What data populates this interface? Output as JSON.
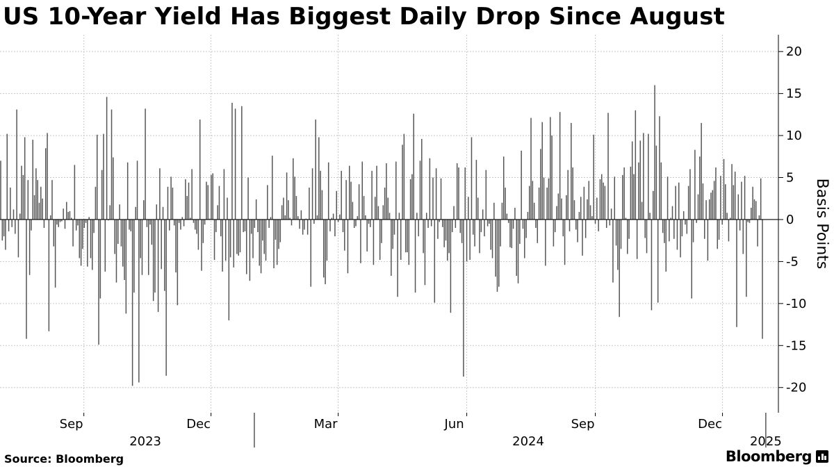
{
  "title": "US 10-Year Yield Has Biggest Daily Drop Since August",
  "source": "Source: Bloomberg",
  "brand": "Bloomberg",
  "brand_icon": "bloomberg-bars-icon",
  "colors": {
    "bar": "#555555",
    "grid": "#c8c8c8",
    "axis": "#000000",
    "background": "#ffffff"
  },
  "chart_data": {
    "type": "bar",
    "title": "US 10-Year Yield Has Biggest Daily Drop Since August",
    "ylabel": "Basis Points",
    "xlabel": "",
    "ylim": [
      -23,
      22
    ],
    "yticks": [
      20,
      15,
      10,
      5,
      0,
      -5,
      -10,
      -15,
      -20
    ],
    "grid": true,
    "y_axis_side": "right",
    "x_start": "2023-07-03",
    "x_end": "2025-01-10",
    "xticks": [
      {
        "date": "2023-09-01",
        "label": "Sep"
      },
      {
        "date": "2023-12-01",
        "label": "Dec"
      },
      {
        "date": "2024-03-01",
        "label": "Mar"
      },
      {
        "date": "2024-06-01",
        "label": "Jun"
      },
      {
        "date": "2024-09-01",
        "label": "Sep"
      },
      {
        "date": "2024-12-01",
        "label": "Dec"
      }
    ],
    "year_labels": [
      {
        "date": "2023-10-15",
        "label": "2023"
      },
      {
        "date": "2024-07-15",
        "label": "2024"
      },
      {
        "date": "2025-01-01",
        "label": "2025"
      }
    ],
    "year_boundaries": [
      "2024-01-01",
      "2025-01-01"
    ],
    "series": [
      {
        "values": [
          7.0,
          -2.5,
          -2.0,
          -3.6,
          10.2,
          -1.4,
          3.8,
          -0.9,
          1.2,
          -1.7,
          13.1,
          -4.5,
          0.7,
          6.4,
          5.3,
          9.8,
          -14.2,
          4.7,
          -6.6,
          -1.3,
          9.5,
          2.9,
          6.1,
          4.7,
          2.0,
          3.9,
          2.5,
          -1.0,
          8.5,
          10.3,
          -13.3,
          0.5,
          4.7,
          -3.2,
          -8.1,
          -0.6,
          -0.9,
          -0.3,
          -0.2,
          1.3,
          -1.1,
          2.1,
          0.9,
          1.0,
          0.2,
          -3.2,
          6.5,
          -1.3,
          -0.7,
          -4.6,
          -5.5,
          -3.5,
          -1.0,
          -0.4,
          -5.6,
          0.3,
          -4.6,
          -6.0,
          -1.6,
          3.9,
          10.1,
          -14.9,
          -9.4,
          5.9,
          10.2,
          -6.2,
          14.6,
          -0.1,
          1.7,
          13.1,
          7.4,
          -4.1,
          -7.5,
          -2.9,
          1.8,
          -3.2,
          -5.6,
          -7.2,
          -11.2,
          6.8,
          -1.2,
          -1.4,
          -19.8,
          -8.7,
          1.5,
          7.0,
          -19.4,
          -4.6,
          -6.6,
          2.3,
          13.2,
          -0.9,
          -6.6,
          -0.6,
          -3.0,
          -9.7,
          -8.7,
          1.8,
          -11.0,
          6.1,
          -5.9,
          1.5,
          -8.5,
          -18.6,
          3.9,
          -1.3,
          5.1,
          3.8,
          -0.7,
          -6.3,
          -10.2,
          -0.4,
          -1.2,
          0.3,
          -0.8,
          4.8,
          2.8,
          4.4,
          0.2,
          6.0,
          -0.4,
          -1.2,
          -1.7,
          -3.6,
          11.9,
          -6.1,
          -2.8,
          -0.6,
          4.5,
          4.1,
          0.1,
          5.3,
          5.5,
          -4.8,
          -1.5,
          1.7,
          4.0,
          -2.0,
          -6.2,
          6.0,
          -4.9,
          2.6,
          -12.0,
          -4.5,
          13.9,
          -5.7,
          13.2,
          -4.1,
          -4.3,
          -3.9,
          13.5,
          -1.5,
          -1.4,
          -6.5,
          5.0,
          -7.3,
          -1.7,
          -4.6,
          -1.0,
          2.4,
          -1.5,
          -5.5,
          -6.4,
          -2.5,
          -4.1,
          -4.9,
          4.1,
          -1.0,
          0.3,
          7.6,
          -5.8,
          -2.4,
          -5.4,
          -3.5,
          -2.7,
          1.7,
          2.6,
          0.5,
          5.6,
          2.3,
          0.2,
          -0.7,
          7.3,
          5.1,
          2.8,
          0.4,
          -1.1,
          1.1,
          -1.8,
          -1.2,
          0.1,
          -1.8,
          3.8,
          -8.0,
          6.1,
          -0.5,
          11.9,
          0.5,
          9.8,
          5.8,
          3.5,
          -6.9,
          -7.7,
          -4.9,
          6.8,
          -1.4,
          0.2,
          0.7,
          -2.0,
          3.4,
          -0.3,
          0.6,
          5.8,
          -1.5,
          -3.7,
          4.7,
          -6.4,
          6.4,
          4.5,
          2.1,
          -1.0,
          -0.8,
          0.4,
          4.2,
          -5.2,
          6.9,
          2.8,
          0.5,
          -3.8,
          -0.5,
          -0.9,
          5.8,
          -5.4,
          2.7,
          6.4,
          1.6,
          -4.8,
          -2.8,
          1.7,
          3.8,
          6.7,
          2.6,
          0.8,
          -6.7,
          -3.5,
          -1.8,
          6.9,
          -9.2,
          0.8,
          -4.8,
          8.9,
          10.2,
          -3.9,
          -3.9,
          -5.4,
          4.8,
          5.4,
          12.6,
          -8.7,
          0.8,
          -2.0,
          7.0,
          9.6,
          -4.0,
          -7.8,
          0.8,
          -1.0,
          7.3,
          -0.8,
          5.0,
          -9.9,
          6.1,
          -2.3,
          -0.3,
          4.9,
          -0.9,
          -3.3,
          -2.5,
          -4.9,
          -4.0,
          -11.1,
          -1.5,
          1.6,
          -1.0,
          6.7,
          6.2,
          -1.6,
          -2.8,
          -18.7,
          6.2,
          -5.0,
          2.7,
          -4.8,
          9.8,
          -1.8,
          -3.2,
          7.1,
          2.6,
          -4.0,
          -1.5,
          1.2,
          -2.0,
          5.9,
          -0.8,
          -0.5,
          -3.6,
          -4.6,
          2.0,
          -6.8,
          -8.6,
          -8.0,
          -3.2,
          2.0,
          7.5,
          3.8,
          0.7,
          -0.4,
          -3.3,
          -3.4,
          -1.1,
          1.4,
          -6.7,
          -7.6,
          -2.9,
          8.2,
          -1.1,
          -4.6,
          -2.2,
          0.9,
          4.0,
          12.1,
          4.6,
          2.0,
          -1.0,
          -2.8,
          3.8,
          8.4,
          11.6,
          5.0,
          -5.5,
          3.8,
          4.9,
          12.2,
          10.0,
          -3.2,
          -1.5,
          1.6,
          3.1,
          12.8,
          2.5,
          -2.0,
          -5.4,
          2.9,
          5.9,
          -1.4,
          11.5,
          6.2,
          2.3,
          -1.2,
          -2.7,
          0.9,
          2.7,
          -4.3,
          3.9,
          -2.2,
          2.4,
          4.6,
          1.7,
          0.4,
          10.1,
          -0.5,
          2.6,
          -1.4,
          4.8,
          5.4,
          4.4,
          4.0,
          -1.0,
          12.7,
          -0.7,
          1.3,
          -7.5,
          5.1,
          -3.1,
          -6.0,
          -11.6,
          -3.5,
          5.3,
          6.2,
          0.2,
          -4.1,
          -2.3,
          6.3,
          9.3,
          5.4,
          13.0,
          -4.7,
          6.8,
          9.4,
          2.1,
          10.3,
          -2.2,
          -4.0,
          10.2,
          0.8,
          -10.8,
          3.4,
          16.0,
          8.8,
          -9.9,
          12.3,
          6.8,
          -1.6,
          -2.8,
          -6.2,
          5.1,
          -2.6,
          0.2,
          1.6,
          -2.3,
          4.0,
          -3.6,
          4.4,
          -4.5,
          -2.0,
          1.0,
          -0.6,
          -1.7,
          4.0,
          6.0,
          -9.4,
          -2.7,
          8.3,
          -0.4,
          3.0,
          7.5,
          11.5,
          4.3,
          -2.3,
          2.3,
          -4.9,
          2.4,
          3.2,
          3.5,
          4.6,
          6.2,
          -3.5,
          -2.4,
          5.2,
          -0.6,
          7.2,
          4.2,
          0.8,
          -2.6,
          0.2,
          6.6,
          4.1,
          5.7,
          -12.8,
          3.0,
          -1.3,
          4.5,
          -4.1,
          5.2,
          -9.2,
          -0.3,
          -0.4,
          1.4,
          3.9,
          2.4,
          2.2,
          -3.2,
          0.5,
          4.9,
          -14.2
        ]
      }
    ]
  }
}
